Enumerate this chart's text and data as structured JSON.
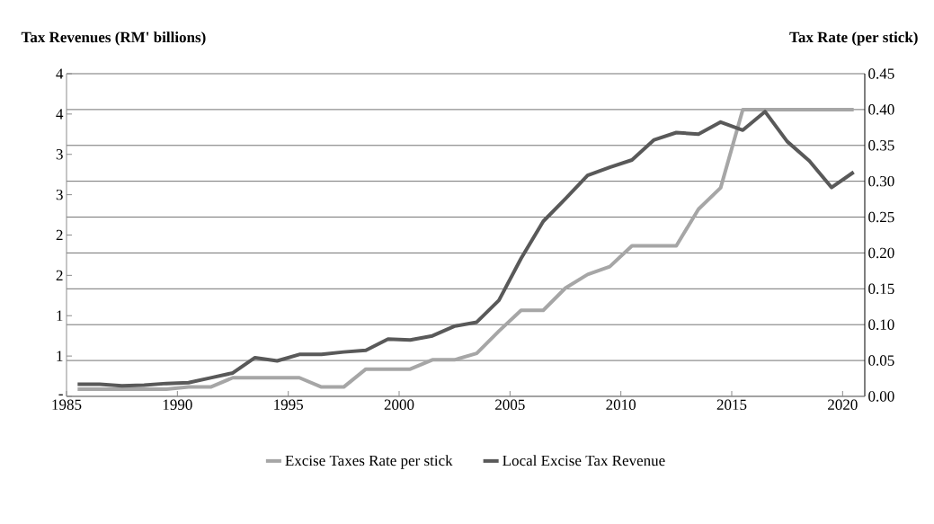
{
  "chart_data": {
    "type": "line",
    "ylabel": "Tax Revenues (RM' billions)",
    "y2label": "Tax Rate (per stick)",
    "x": [
      1985.5,
      1986.5,
      1987.5,
      1988.5,
      1989.5,
      1990.5,
      1991.5,
      1992.5,
      1993.5,
      1994.5,
      1995.5,
      1996.5,
      1997.5,
      1998.5,
      1999.5,
      2000.5,
      2001.5,
      2002.5,
      2003.5,
      2004.5,
      2005.5,
      2006.5,
      2007.5,
      2008.5,
      2009.5,
      2010.5,
      2011.5,
      2012.5,
      2013.5,
      2014.5,
      2015.5,
      2016.5,
      2017.5,
      2018.5,
      2019.5,
      2020.5
    ],
    "xlim": [
      1985,
      2021
    ],
    "xticks": [
      1985,
      1990,
      1995,
      2000,
      2005,
      2010,
      2015,
      2020
    ],
    "ylim": [
      0,
      4
    ],
    "yticks": [
      {
        "value": 0,
        "label": "-"
      },
      {
        "value": 0.5,
        "label": "1"
      },
      {
        "value": 1,
        "label": "1"
      },
      {
        "value": 1.5,
        "label": "2"
      },
      {
        "value": 2,
        "label": "2"
      },
      {
        "value": 2.5,
        "label": "3"
      },
      {
        "value": 3,
        "label": "3"
      },
      {
        "value": 3.5,
        "label": "4"
      },
      {
        "value": 4,
        "label": "4"
      }
    ],
    "y2lim": [
      0,
      0.45
    ],
    "y2ticks": [
      {
        "value": 0,
        "label": "0.00"
      },
      {
        "value": 0.05,
        "label": "0.05"
      },
      {
        "value": 0.1,
        "label": "0.10"
      },
      {
        "value": 0.15,
        "label": "0.15"
      },
      {
        "value": 0.2,
        "label": "0.20"
      },
      {
        "value": 0.25,
        "label": "0.25"
      },
      {
        "value": 0.3,
        "label": "0.30"
      },
      {
        "value": 0.35,
        "label": "0.35"
      },
      {
        "value": 0.4,
        "label": "0.40"
      },
      {
        "value": 0.45,
        "label": "0.45"
      }
    ],
    "grid": "y",
    "legend": "bottom",
    "marker": "none",
    "line_style": "solid",
    "series": [
      {
        "name": "Excise Taxes Rate per stick",
        "color": "#a6a6a6",
        "axis": "y2",
        "values": [
          0.01,
          0.01,
          0.01,
          0.01,
          0.01,
          0.013,
          0.013,
          0.026,
          0.026,
          0.026,
          0.026,
          0.013,
          0.013,
          0.038,
          0.038,
          0.038,
          0.051,
          0.051,
          0.06,
          0.091,
          0.12,
          0.12,
          0.151,
          0.17,
          0.181,
          0.21,
          0.21,
          0.21,
          0.261,
          0.291,
          0.4,
          0.4,
          0.4,
          0.4,
          0.4,
          0.4
        ]
      },
      {
        "name": "Local Excise Tax Revenue",
        "color": "#595959",
        "values": [
          0.15,
          0.15,
          0.13,
          0.14,
          0.16,
          0.17,
          0.23,
          0.29,
          0.48,
          0.44,
          0.52,
          0.52,
          0.55,
          0.57,
          0.71,
          0.7,
          0.75,
          0.87,
          0.92,
          1.19,
          1.71,
          2.17,
          2.45,
          2.74,
          2.84,
          2.93,
          3.18,
          3.27,
          3.25,
          3.4,
          3.3,
          3.53,
          3.16,
          2.92,
          2.59,
          2.78
        ]
      }
    ]
  }
}
